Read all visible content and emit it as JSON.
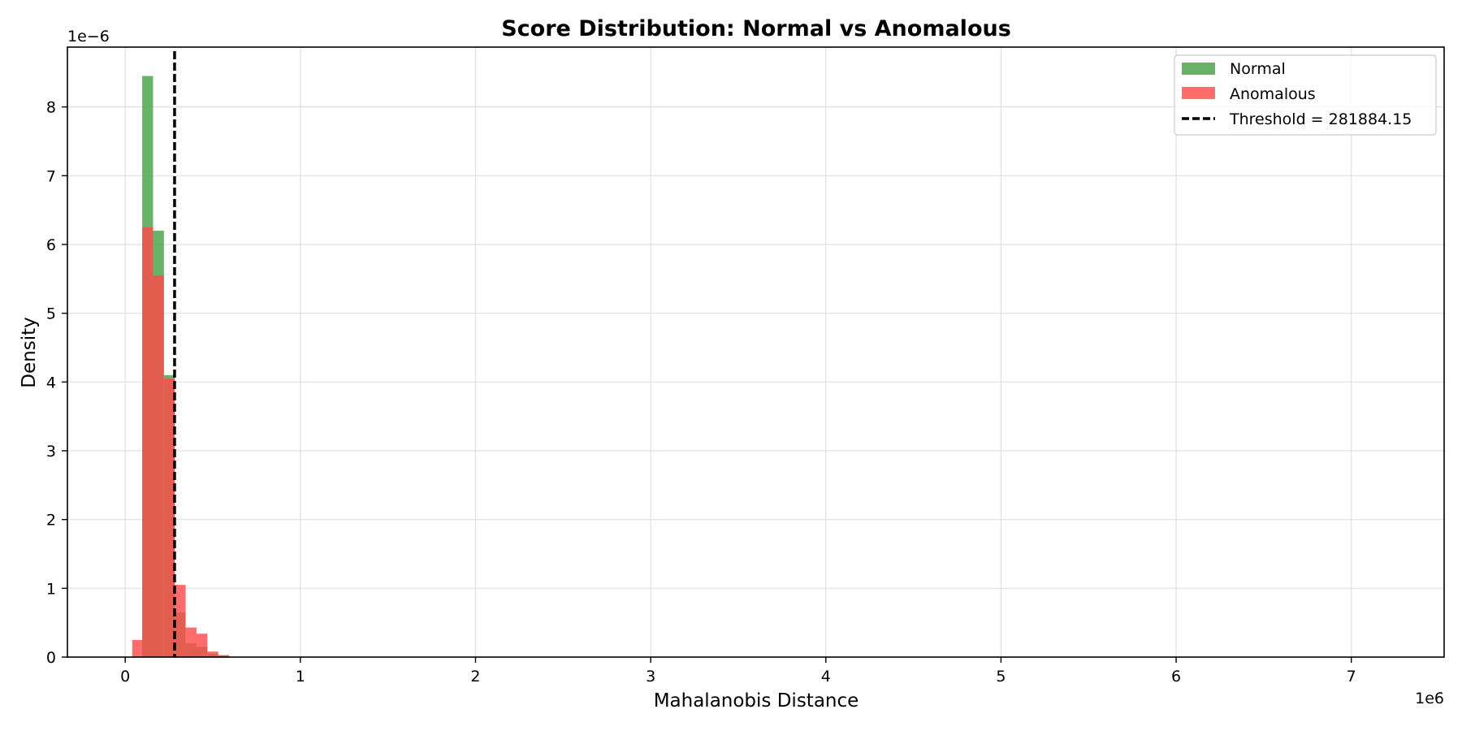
{
  "chart_data": {
    "type": "bar",
    "title": "Score Distribution: Normal vs Anomalous",
    "xlabel": "Mahalanobis Distance",
    "ylabel": "Density",
    "x_scale_label": "1e6",
    "y_scale_label": "1e−6",
    "xlim": [
      -0.33,
      7.53
    ],
    "ylim": [
      0,
      8.87
    ],
    "x_ticks": [
      0,
      1,
      2,
      3,
      4,
      5,
      6,
      7
    ],
    "x_tick_labels": [
      "0",
      "1",
      "2",
      "3",
      "4",
      "5",
      "6",
      "7"
    ],
    "y_ticks": [
      0,
      1,
      2,
      3,
      4,
      5,
      6,
      7,
      8
    ],
    "y_tick_labels": [
      "0",
      "1",
      "2",
      "3",
      "4",
      "5",
      "6",
      "7",
      "8"
    ],
    "grid": true,
    "legend_position": "top-right",
    "bin_width": 0.062,
    "series": [
      {
        "name": "Normal",
        "color": "#4CA64C",
        "opacity": 0.85,
        "bin_starts": [
          0.097,
          0.159,
          0.221,
          0.283,
          0.345,
          0.407,
          0.469,
          0.531
        ],
        "values": [
          8.45,
          6.2,
          4.1,
          0.65,
          0.2,
          0.15,
          0.05,
          0.02
        ]
      },
      {
        "name": "Anomalous",
        "color": "#FF4C4C",
        "opacity": 0.82,
        "bin_starts": [
          0.04,
          0.097,
          0.159,
          0.221,
          0.283,
          0.345,
          0.407,
          0.469,
          0.531
        ],
        "values": [
          0.25,
          6.25,
          5.55,
          4.05,
          1.05,
          0.43,
          0.34,
          0.08,
          0.03
        ]
      }
    ],
    "threshold": {
      "label": "Threshold = 281884.15",
      "value": 0.2819,
      "color": "#000000"
    }
  }
}
